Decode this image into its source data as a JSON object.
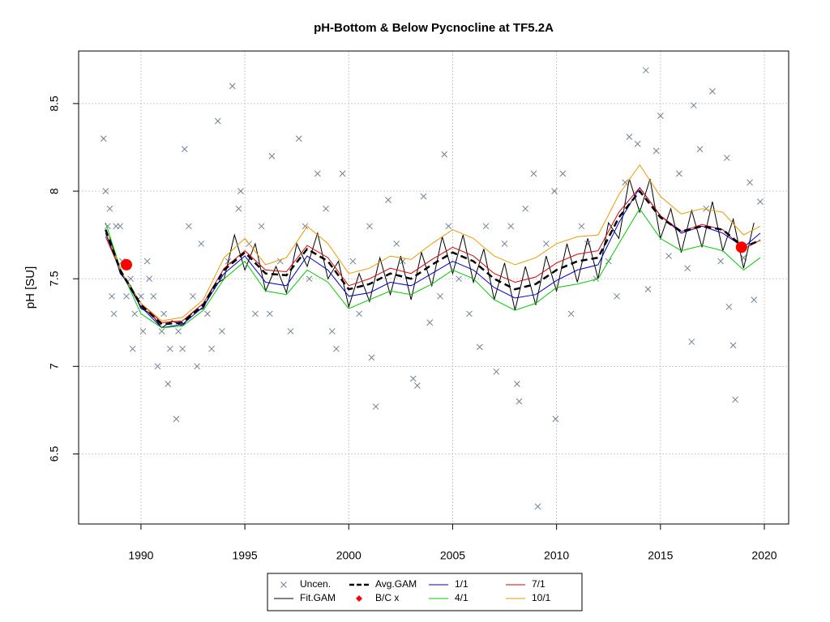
{
  "chart_data": {
    "type": "line",
    "title": "pH-Bottom & Below Pycnocline at TF5.2A",
    "y_label": "pH [SU]",
    "xlim": [
      1987.0,
      2021.17
    ],
    "ylim": [
      6.1,
      8.8
    ],
    "xticks": [
      1990,
      1995,
      2000,
      2005,
      2010,
      2015,
      2020
    ],
    "yticks": [
      6.5,
      7.0,
      7.5,
      8.0,
      8.5
    ],
    "grid": true,
    "legend_position": "bottom",
    "series": [
      {
        "name": "Uncen.",
        "color": "#708090",
        "style": "points",
        "x": [
          1988.2,
          1988.3,
          1988.4,
          1988.5,
          1988.6,
          1988.7,
          1988.8,
          1989,
          1989.1,
          1989.3,
          1989.5,
          1989.6,
          1989.7,
          1990,
          1990.1,
          1990.3,
          1990.4,
          1990.6,
          1990.8,
          1991,
          1991.1,
          1991.3,
          1991.4,
          1991.7,
          1991.8,
          1992,
          1992.1,
          1992.3,
          1992.5,
          1992.7,
          1992.9,
          1993.2,
          1993.4,
          1993.7,
          1993.9,
          1994.2,
          1994.4,
          1994.7,
          1994.8,
          1995.2,
          1995.5,
          1995.8,
          1996.2,
          1996.3,
          1996.7,
          1997.2,
          1997.6,
          1997.9,
          1998.1,
          1998.5,
          1998.9,
          1999.2,
          1999.4,
          1999.7,
          2000.2,
          2000.5,
          2001,
          2001.1,
          2001.3,
          2001.9,
          2002.3,
          2002.6,
          2003.1,
          2003.3,
          2003.6,
          2003.9,
          2004.4,
          2004.6,
          2004.8,
          2005.3,
          2005.8,
          2006.3,
          2006.6,
          2007.1,
          2007.5,
          2007.8,
          2008.2,
          2008.1,
          2008.5,
          2008.9,
          2009.1,
          2009.5,
          2009.9,
          2009.95,
          2010.3,
          2010.7,
          2011.2,
          2011.5,
          2011.9,
          2012.5,
          2012.9,
          2013.3,
          2013.5,
          2013.9,
          2014.3,
          2014.4,
          2014.8,
          2015,
          2015.4,
          2015.9,
          2016.3,
          2016.5,
          2016.6,
          2016.9,
          2017.2,
          2017.5,
          2017.9,
          2018.2,
          2018.3,
          2018.5,
          2018.6,
          2019,
          2019.3,
          2019.5,
          2019.8
        ],
        "values": [
          8.3,
          8.0,
          7.8,
          7.9,
          7.4,
          7.3,
          7.8,
          7.8,
          7.6,
          7.4,
          7.5,
          7.1,
          7.3,
          7.4,
          7.2,
          7.6,
          7.5,
          7.4,
          7.0,
          7.2,
          7.3,
          6.9,
          7.1,
          6.7,
          7.2,
          7.1,
          8.24,
          7.8,
          7.4,
          7.0,
          7.7,
          7.3,
          7.1,
          8.4,
          7.2,
          7.6,
          8.6,
          7.9,
          8.0,
          7.7,
          7.3,
          7.8,
          7.3,
          8.2,
          7.6,
          7.2,
          8.3,
          7.8,
          7.5,
          8.1,
          7.9,
          7.2,
          7.1,
          8.1,
          7.6,
          7.3,
          7.8,
          7.05,
          6.77,
          7.95,
          7.7,
          7.6,
          6.93,
          6.89,
          7.97,
          7.25,
          7.4,
          8.21,
          7.8,
          7.5,
          7.3,
          7.11,
          7.8,
          6.97,
          7.7,
          7.8,
          6.8,
          6.9,
          7.9,
          8.1,
          6.2,
          7.7,
          8.0,
          6.7,
          8.1,
          7.3,
          7.8,
          7.7,
          7.5,
          7.6,
          7.4,
          8.05,
          8.31,
          8.27,
          8.69,
          7.44,
          8.23,
          8.43,
          7.63,
          8.1,
          7.56,
          7.14,
          8.49,
          8.24,
          7.9,
          8.57,
          7.6,
          8.19,
          7.34,
          7.12,
          6.81,
          7.62,
          8.05,
          7.38,
          7.94
        ]
      },
      {
        "name": "Fit.GAM",
        "color": "#000000",
        "style": "line",
        "x": [
          1988.5,
          1989,
          1989.5,
          1990,
          1990.5,
          1991,
          1991.5,
          1992,
          1992.5,
          1993,
          1993.5,
          1994,
          1994.5,
          1995,
          1995.5,
          1996,
          1996.5,
          1997,
          1997.5,
          1998,
          1998.5,
          1999,
          1999.5,
          2000,
          2000.5,
          2001,
          2001.5,
          2002,
          2002.5,
          2003,
          2003.5,
          2004,
          2004.5,
          2005,
          2005.5,
          2006,
          2006.5,
          2007,
          2007.5,
          2008,
          2008.5,
          2009,
          2009.5,
          2010,
          2010.5,
          2011,
          2011.5,
          2012,
          2012.5,
          2013,
          2013.5,
          2014,
          2014.5,
          2015,
          2015.5,
          2016,
          2016.5,
          2017,
          2017.5,
          2018,
          2018.5,
          2019,
          2019.5
        ],
        "values": [
          7.74,
          7.53,
          7.46,
          7.33,
          7.3,
          7.22,
          7.26,
          7.23,
          7.31,
          7.33,
          7.46,
          7.5,
          7.75,
          7.55,
          7.7,
          7.43,
          7.57,
          7.42,
          7.7,
          7.57,
          7.76,
          7.5,
          7.6,
          7.34,
          7.53,
          7.37,
          7.62,
          7.41,
          7.63,
          7.38,
          7.65,
          7.46,
          7.74,
          7.53,
          7.75,
          7.48,
          7.67,
          7.38,
          7.59,
          7.32,
          7.57,
          7.35,
          7.63,
          7.43,
          7.7,
          7.48,
          7.73,
          7.5,
          7.82,
          7.73,
          8.07,
          7.88,
          8.07,
          7.73,
          7.9,
          7.65,
          7.89,
          7.68,
          7.94,
          7.66,
          7.84,
          7.56,
          7.82
        ]
      },
      {
        "name": "Avg.GAM",
        "color": "#000000",
        "style": "dashed",
        "x": [
          1988.3,
          1989,
          1990,
          1991,
          1992,
          1993,
          1994,
          1995,
          1996,
          1997,
          1998,
          1999,
          2000,
          2001,
          2002,
          2003,
          2004,
          2005,
          2006,
          2007,
          2008,
          2009,
          2010,
          2011,
          2012,
          2013,
          2014,
          2015,
          2016,
          2017,
          2018,
          2019,
          2019.8
        ],
        "values": [
          7.78,
          7.55,
          7.35,
          7.24,
          7.25,
          7.35,
          7.55,
          7.65,
          7.53,
          7.52,
          7.67,
          7.6,
          7.44,
          7.47,
          7.53,
          7.5,
          7.58,
          7.65,
          7.6,
          7.5,
          7.44,
          7.47,
          7.55,
          7.6,
          7.62,
          7.85,
          8.0,
          7.85,
          7.77,
          7.8,
          7.78,
          7.68,
          7.72
        ]
      },
      {
        "name": "B/C x",
        "color": "#ff0000",
        "style": "dots",
        "x": [
          1989.3,
          2018.9
        ],
        "values": [
          7.58,
          7.68
        ]
      },
      {
        "name": "1/1",
        "color": "#0000cc",
        "style": "line",
        "x": [
          1988.3,
          1989,
          1990,
          1991,
          1992,
          1993,
          1994,
          1995,
          1996,
          1997,
          1998,
          1999,
          2000,
          2001,
          2002,
          2003,
          2004,
          2005,
          2006,
          2007,
          2008,
          2009,
          2010,
          2011,
          2012,
          2013,
          2014,
          2015,
          2016,
          2017,
          2018,
          2019,
          2019.8
        ],
        "values": [
          7.76,
          7.54,
          7.34,
          7.22,
          7.24,
          7.34,
          7.53,
          7.63,
          7.48,
          7.46,
          7.63,
          7.55,
          7.4,
          7.42,
          7.48,
          7.46,
          7.53,
          7.6,
          7.55,
          7.45,
          7.39,
          7.41,
          7.49,
          7.55,
          7.58,
          7.82,
          8.02,
          7.86,
          7.76,
          7.8,
          7.76,
          7.68,
          7.76
        ]
      },
      {
        "name": "4/1",
        "color": "#00cc00",
        "style": "line",
        "x": [
          1988.3,
          1989,
          1990,
          1991,
          1992,
          1993,
          1994,
          1995,
          1996,
          1997,
          1998,
          1999,
          2000,
          2001,
          2002,
          2003,
          2004,
          2005,
          2006,
          2007,
          2008,
          2009,
          2010,
          2011,
          2012,
          2013,
          2014,
          2015,
          2016,
          2017,
          2018,
          2019,
          2019.8
        ],
        "values": [
          7.82,
          7.56,
          7.3,
          7.22,
          7.23,
          7.32,
          7.5,
          7.6,
          7.43,
          7.41,
          7.55,
          7.48,
          7.33,
          7.38,
          7.43,
          7.41,
          7.47,
          7.55,
          7.5,
          7.38,
          7.32,
          7.36,
          7.45,
          7.47,
          7.5,
          7.7,
          7.9,
          7.73,
          7.66,
          7.69,
          7.66,
          7.55,
          7.62
        ]
      },
      {
        "name": "7/1",
        "color": "#dd0000",
        "style": "line",
        "x": [
          1988.3,
          1989,
          1990,
          1991,
          1992,
          1993,
          1994,
          1995,
          1996,
          1997,
          1998,
          1999,
          2000,
          2001,
          2002,
          2003,
          2004,
          2005,
          2006,
          2007,
          2008,
          2009,
          2010,
          2011,
          2012,
          2013,
          2014,
          2015,
          2016,
          2017,
          2018,
          2019,
          2019.8
        ],
        "values": [
          7.74,
          7.55,
          7.36,
          7.25,
          7.26,
          7.36,
          7.56,
          7.66,
          7.55,
          7.54,
          7.69,
          7.62,
          7.46,
          7.5,
          7.56,
          7.53,
          7.61,
          7.68,
          7.63,
          7.53,
          7.48,
          7.51,
          7.59,
          7.64,
          7.66,
          7.88,
          8.02,
          7.86,
          7.77,
          7.81,
          7.78,
          7.67,
          7.72
        ]
      },
      {
        "name": "10/1",
        "color": "#ee9900",
        "style": "line",
        "x": [
          1988.3,
          1989,
          1990,
          1991,
          1992,
          1993,
          1994,
          1995,
          1996,
          1997,
          1998,
          1999,
          2000,
          2001,
          2002,
          2003,
          2004,
          2005,
          2006,
          2007,
          2008,
          2009,
          2010,
          2011,
          2012,
          2013,
          2014,
          2015,
          2016,
          2017,
          2018,
          2019,
          2019.8
        ],
        "values": [
          7.78,
          7.55,
          7.36,
          7.26,
          7.28,
          7.38,
          7.62,
          7.73,
          7.58,
          7.62,
          7.8,
          7.7,
          7.53,
          7.56,
          7.63,
          7.61,
          7.7,
          7.78,
          7.73,
          7.63,
          7.58,
          7.62,
          7.7,
          7.74,
          7.75,
          7.98,
          8.15,
          7.97,
          7.87,
          7.9,
          7.88,
          7.75,
          7.8
        ]
      }
    ]
  }
}
